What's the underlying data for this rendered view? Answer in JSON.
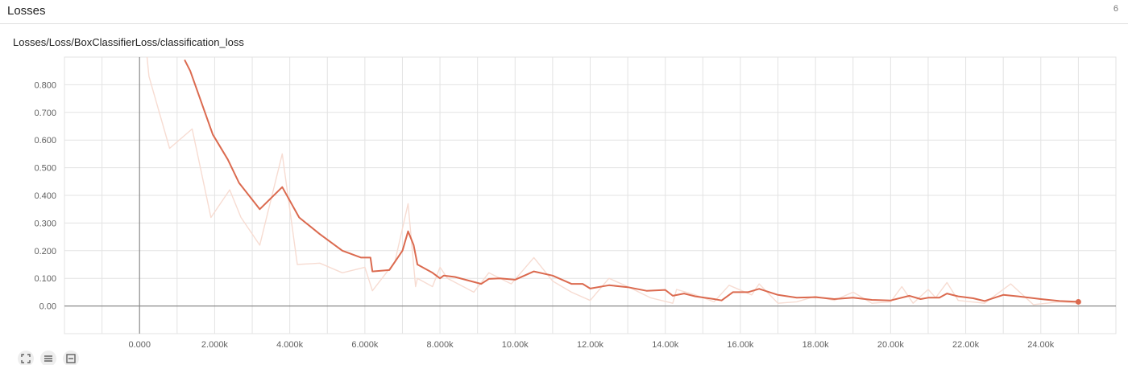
{
  "header": {
    "title": "Losses",
    "count": "6"
  },
  "card": {
    "title": "Losses/Loss/BoxClassifierLoss/classification_loss"
  },
  "toolbar": {
    "buttons": [
      {
        "name": "fit-domain-icon"
      },
      {
        "name": "toggle-log-scale-icon"
      },
      {
        "name": "toggle-y-axis-icon"
      }
    ]
  },
  "colors": {
    "line": "#db6a4f",
    "raw": "#f7dcd2",
    "grid": "#e3e3e3",
    "axis": "#8a8a8a"
  },
  "chart_data": {
    "type": "line",
    "title": "Losses/Loss/BoxClassifierLoss/classification_loss",
    "xlabel": "",
    "ylabel": "",
    "xlim": [
      -2000,
      26000
    ],
    "ylim": [
      -0.1,
      0.9
    ],
    "grid": true,
    "x_ticks": [
      0,
      2000,
      4000,
      6000,
      8000,
      10000,
      12000,
      14000,
      16000,
      18000,
      20000,
      22000,
      24000
    ],
    "x_tick_labels": [
      "0.000",
      "2.000k",
      "4.000k",
      "6.000k",
      "8.000k",
      "10.00k",
      "12.00k",
      "14.00k",
      "16.00k",
      "18.00k",
      "20.00k",
      "22.00k",
      "24.00k"
    ],
    "y_ticks": [
      0,
      0.1,
      0.2,
      0.3,
      0.4,
      0.5,
      0.6,
      0.7,
      0.8
    ],
    "y_tick_labels": [
      "0.00",
      "0.100",
      "0.200",
      "0.300",
      "0.400",
      "0.500",
      "0.600",
      "0.700",
      "0.800"
    ],
    "series": [
      {
        "role": "smoothed",
        "x": [
          1200,
          1350,
          1950,
          2350,
          2650,
          3200,
          3800,
          4250,
          4800,
          5400,
          5900,
          6150,
          6200,
          6650,
          7000,
          7150,
          7300,
          7400,
          7800,
          8000,
          8100,
          8400,
          9100,
          9300,
          9600,
          10000,
          10500,
          11000,
          11500,
          11800,
          12000,
          12500,
          13000,
          13500,
          14000,
          14200,
          14500,
          14800,
          15300,
          15500,
          15800,
          16200,
          16500,
          17000,
          17500,
          18000,
          18500,
          19000,
          19500,
          20000,
          20500,
          20800,
          21000,
          21300,
          21500,
          21800,
          22200,
          22500,
          23000,
          23400,
          24000,
          24500,
          25000
        ],
        "y": [
          0.89,
          0.85,
          0.62,
          0.53,
          0.445,
          0.35,
          0.43,
          0.32,
          0.26,
          0.2,
          0.175,
          0.175,
          0.125,
          0.13,
          0.2,
          0.27,
          0.22,
          0.15,
          0.12,
          0.1,
          0.11,
          0.105,
          0.08,
          0.098,
          0.1,
          0.095,
          0.125,
          0.11,
          0.08,
          0.08,
          0.063,
          0.075,
          0.068,
          0.055,
          0.058,
          0.037,
          0.045,
          0.035,
          0.025,
          0.02,
          0.05,
          0.05,
          0.062,
          0.04,
          0.03,
          0.032,
          0.025,
          0.03,
          0.022,
          0.02,
          0.037,
          0.025,
          0.03,
          0.03,
          0.045,
          0.035,
          0.028,
          0.018,
          0.04,
          0.035,
          0.025,
          0.018,
          0.015
        ]
      },
      {
        "role": "raw",
        "x": [
          200,
          250,
          800,
          1400,
          1900,
          2400,
          2700,
          3200,
          3800,
          4200,
          4800,
          5400,
          6000,
          6200,
          6800,
          7150,
          7350,
          7400,
          7800,
          8000,
          8200,
          8900,
          9300,
          9900,
          10500,
          11000,
          11500,
          12000,
          12500,
          13000,
          13600,
          14200,
          14300,
          14800,
          15300,
          15700,
          16300,
          16500,
          17000,
          17500,
          18000,
          18500,
          19000,
          19500,
          20000,
          20300,
          20600,
          21000,
          21200,
          21500,
          21800,
          22500,
          23200,
          23800,
          24500,
          25000
        ],
        "y": [
          0.9,
          0.83,
          0.57,
          0.64,
          0.32,
          0.42,
          0.32,
          0.22,
          0.55,
          0.15,
          0.155,
          0.12,
          0.14,
          0.055,
          0.16,
          0.37,
          0.07,
          0.1,
          0.07,
          0.14,
          0.1,
          0.05,
          0.12,
          0.08,
          0.175,
          0.09,
          0.05,
          0.02,
          0.1,
          0.07,
          0.03,
          0.01,
          0.06,
          0.04,
          0.015,
          0.075,
          0.04,
          0.08,
          0.01,
          0.015,
          0.035,
          0.02,
          0.05,
          0.01,
          0.015,
          0.07,
          0.01,
          0.06,
          0.03,
          0.085,
          0.02,
          0.01,
          0.08,
          0.005,
          0.015,
          0.01
        ]
      }
    ]
  }
}
